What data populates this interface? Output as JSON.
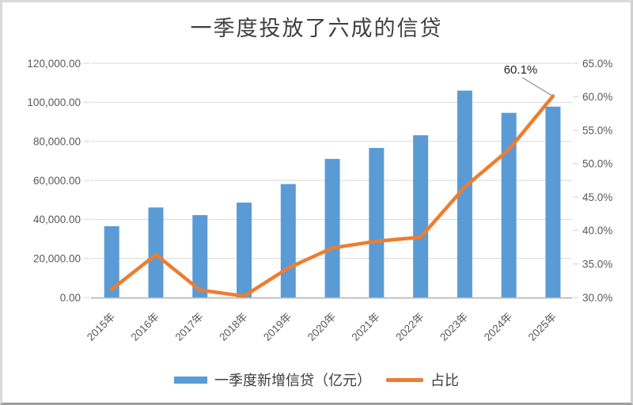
{
  "chart_data": {
    "type": "combo_bar_line",
    "title": "一季度投放了六成的信贷",
    "categories": [
      "2015年",
      "2016年",
      "2017年",
      "2018年",
      "2019年",
      "2020年",
      "2021年",
      "2022年",
      "2023年",
      "2024年",
      "2025年"
    ],
    "series": [
      {
        "name": "一季度新增信贷（亿元）",
        "type": "bar",
        "axis": "left",
        "color": "#5B9BD5",
        "values": [
          36500,
          46100,
          42200,
          48600,
          58100,
          71000,
          76600,
          83100,
          106000,
          94600,
          97800
        ]
      },
      {
        "name": "占比",
        "type": "line",
        "axis": "right",
        "color": "#ED7D31",
        "values": [
          31.2,
          36.4,
          31.1,
          30.2,
          34.4,
          37.4,
          38.4,
          39.0,
          46.5,
          52.1,
          60.1
        ]
      }
    ],
    "left_axis": {
      "min": 0,
      "max": 120000,
      "step": 20000,
      "tick_labels": [
        "0.00",
        "20,000.00",
        "40,000.00",
        "60,000.00",
        "80,000.00",
        "100,000.00",
        "120,000.00"
      ]
    },
    "right_axis": {
      "min": 30,
      "max": 65,
      "step": 5,
      "tick_labels": [
        "30.0%",
        "35.0%",
        "40.0%",
        "45.0%",
        "50.0%",
        "55.0%",
        "60.0%",
        "65.0%"
      ]
    },
    "annotation": {
      "text": "60.1%",
      "target_series": "占比",
      "target_category": "2025年"
    },
    "legend_position": "bottom",
    "grid": "horizontal"
  },
  "colors": {
    "grid": "#d9d9d9",
    "tick": "#d9d9d9",
    "axis_line": "#bfbfbf",
    "axis_text": "#595959",
    "title_text": "#404040",
    "legend_text": "#3d3d3d",
    "annotation_text": "#262626",
    "leader_line": "#a6a6a6",
    "background": "#ffffff"
  }
}
